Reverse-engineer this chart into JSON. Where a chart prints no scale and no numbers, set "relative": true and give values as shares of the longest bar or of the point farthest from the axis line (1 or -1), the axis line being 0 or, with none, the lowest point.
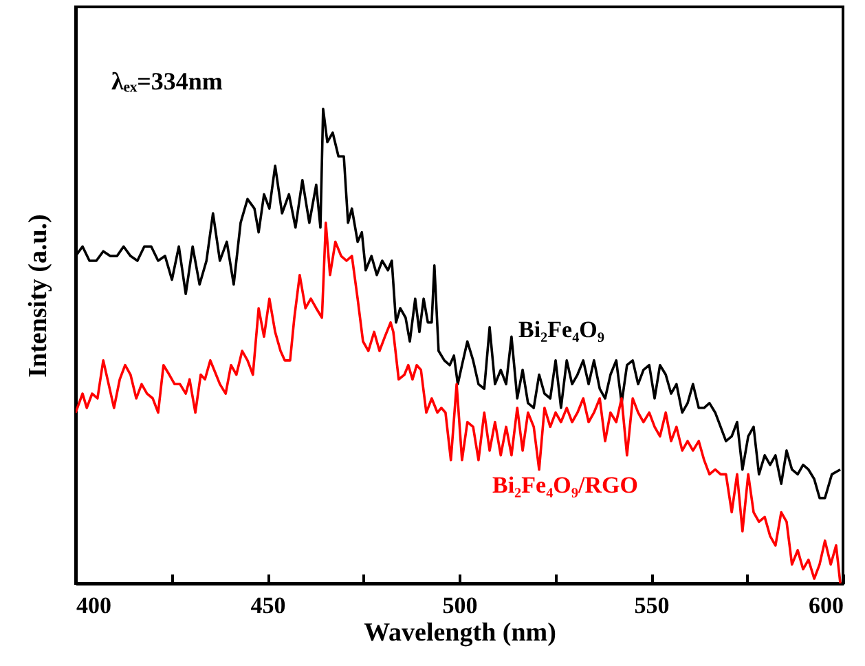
{
  "chart_data": {
    "type": "line",
    "relative": true,
    "xlabel": "Wavelength (nm)",
    "ylabel": "Intensity (a.u.)",
    "annotations": [
      "λₑₓ=334nm"
    ],
    "xlim": [
      400,
      600
    ],
    "xticks": [
      400,
      {
        "value": 425,
        "label": null
      },
      450,
      {
        "value": 475,
        "label": null
      },
      500,
      {
        "value": 525,
        "label": null
      },
      550,
      {
        "value": 575,
        "label": null
      },
      600
    ],
    "grid": false,
    "marker": "none",
    "line_style": "solid",
    "series": [
      {
        "name": "Bi₂Fe₄O₉",
        "color": "#000000",
        "x": [
          400,
          401.8,
          403.6,
          405.4,
          407.2,
          409.0,
          410.8,
          412.5,
          414.3,
          416.1,
          417.9,
          419.7,
          421.5,
          423.3,
          425.1,
          426.9,
          428.7,
          430.5,
          432.3,
          434.1,
          435.8,
          437.6,
          439.4,
          441.2,
          443.0,
          444.8,
          446.6,
          447.7,
          449.1,
          450.5,
          452.0,
          453.8,
          455.6,
          457.3,
          459.1,
          460.9,
          462.7,
          463.8,
          464.5,
          465.6,
          467.0,
          468.5,
          469.9,
          471.0,
          472.0,
          473.5,
          474.6,
          475.6,
          477.1,
          478.5,
          479.9,
          481.4,
          482.4,
          483.5,
          484.6,
          486.0,
          487.1,
          488.5,
          489.6,
          490.7,
          491.8,
          492.8,
          493.5,
          494.6,
          496.1,
          497.5,
          498.6,
          499.6,
          500.7,
          502.1,
          503.6,
          505.0,
          506.5,
          507.9,
          509.3,
          510.8,
          512.2,
          513.6,
          515.1,
          516.5,
          517.9,
          519.4,
          520.8,
          522.2,
          523.7,
          525.1,
          526.5,
          528.0,
          529.4,
          530.8,
          532.3,
          533.7,
          535.1,
          536.6,
          538.0,
          539.4,
          540.9,
          542.3,
          543.7,
          545.2,
          546.6,
          548.0,
          549.5,
          550.9,
          552.3,
          553.8,
          555.2,
          556.6,
          558.1,
          559.5,
          560.9,
          562.4,
          563.8,
          565.2,
          566.7,
          568.1,
          569.5,
          571.0,
          572.4,
          573.8,
          575.3,
          576.7,
          578.1,
          579.6,
          581.0,
          582.4,
          583.9,
          585.3,
          586.7,
          588.2,
          589.6,
          591.0,
          592.5,
          593.9,
          595.3,
          597.1,
          599.3
        ],
        "values": [
          0.69,
          0.71,
          0.68,
          0.68,
          0.7,
          0.69,
          0.69,
          0.71,
          0.69,
          0.68,
          0.71,
          0.71,
          0.68,
          0.69,
          0.64,
          0.71,
          0.61,
          0.71,
          0.63,
          0.68,
          0.78,
          0.68,
          0.72,
          0.63,
          0.76,
          0.81,
          0.79,
          0.74,
          0.82,
          0.79,
          0.88,
          0.78,
          0.82,
          0.75,
          0.85,
          0.76,
          0.84,
          0.75,
          1,
          0.93,
          0.95,
          0.9,
          0.9,
          0.76,
          0.79,
          0.72,
          0.74,
          0.66,
          0.69,
          0.65,
          0.68,
          0.66,
          0.68,
          0.55,
          0.58,
          0.56,
          0.51,
          0.6,
          0.53,
          0.6,
          0.55,
          0.55,
          0.67,
          0.49,
          0.47,
          0.46,
          0.48,
          0.42,
          0.46,
          0.51,
          0.47,
          0.42,
          0.41,
          0.54,
          0.42,
          0.45,
          0.42,
          0.52,
          0.39,
          0.45,
          0.38,
          0.37,
          0.44,
          0.4,
          0.39,
          0.47,
          0.37,
          0.47,
          0.42,
          0.44,
          0.47,
          0.42,
          0.47,
          0.41,
          0.39,
          0.44,
          0.47,
          0.38,
          0.46,
          0.47,
          0.42,
          0.45,
          0.46,
          0.39,
          0.46,
          0.44,
          0.4,
          0.42,
          0.36,
          0.38,
          0.42,
          0.37,
          0.37,
          0.38,
          0.36,
          0.33,
          0.3,
          0.31,
          0.34,
          0.24,
          0.31,
          0.33,
          0.23,
          0.27,
          0.25,
          0.27,
          0.21,
          0.28,
          0.24,
          0.23,
          0.25,
          0.24,
          0.22,
          0.18,
          0.18,
          0.23,
          0.24
        ]
      },
      {
        "name": "Bi₂Fe₄O₉/RGO",
        "color": "#ff0000",
        "x": [
          400,
          401.8,
          402.9,
          404.3,
          405.7,
          407.2,
          408.6,
          410.0,
          411.5,
          412.9,
          414.3,
          415.8,
          417.2,
          418.6,
          420.1,
          421.5,
          422.9,
          424.4,
          425.8,
          427.2,
          428.7,
          429.7,
          431.2,
          432.6,
          433.7,
          435.1,
          436.6,
          437.6,
          439.1,
          440.5,
          441.9,
          443.4,
          444.8,
          446.2,
          447.7,
          449.1,
          450.5,
          452.0,
          453.4,
          454.5,
          455.9,
          457.0,
          458.4,
          459.9,
          461.3,
          462.7,
          464.2,
          465.2,
          466.3,
          467.7,
          469.2,
          470.6,
          472.0,
          473.5,
          474.9,
          476.3,
          477.8,
          479.2,
          480.6,
          482.1,
          482.8,
          484.2,
          485.7,
          486.7,
          487.8,
          488.9,
          490.0,
          491.4,
          492.8,
          494.3,
          495.3,
          496.4,
          497.8,
          499.3,
          500.7,
          502.1,
          503.6,
          505.0,
          506.5,
          507.9,
          509.3,
          510.8,
          512.2,
          513.6,
          515.1,
          516.5,
          517.9,
          519.4,
          520.8,
          522.2,
          523.7,
          525.1,
          526.5,
          528.0,
          529.4,
          530.8,
          532.3,
          533.7,
          535.1,
          536.6,
          538.0,
          539.4,
          540.9,
          542.3,
          543.7,
          545.2,
          546.6,
          548.0,
          549.5,
          550.9,
          552.3,
          553.8,
          555.2,
          556.6,
          558.1,
          559.5,
          560.9,
          562.4,
          563.8,
          565.2,
          566.7,
          568.1,
          569.5,
          571.0,
          572.4,
          573.8,
          575.3,
          576.7,
          578.1,
          579.6,
          581.0,
          582.4,
          583.9,
          585.3,
          586.7,
          588.2,
          589.6,
          591.0,
          592.5,
          593.9,
          595.3,
          596.8,
          598.2,
          599.3
        ],
        "values": [
          0.36,
          0.4,
          0.37,
          0.4,
          0.39,
          0.47,
          0.42,
          0.37,
          0.43,
          0.46,
          0.44,
          0.39,
          0.42,
          0.4,
          0.39,
          0.36,
          0.46,
          0.44,
          0.42,
          0.42,
          0.4,
          0.43,
          0.36,
          0.44,
          0.43,
          0.47,
          0.44,
          0.42,
          0.4,
          0.46,
          0.44,
          0.49,
          0.47,
          0.44,
          0.58,
          0.52,
          0.6,
          0.53,
          0.49,
          0.47,
          0.47,
          0.56,
          0.65,
          0.58,
          0.6,
          0.58,
          0.56,
          0.76,
          0.65,
          0.72,
          0.69,
          0.68,
          0.69,
          0.6,
          0.51,
          0.49,
          0.53,
          0.49,
          0.52,
          0.55,
          0.53,
          0.43,
          0.44,
          0.46,
          0.43,
          0.46,
          0.45,
          0.36,
          0.39,
          0.36,
          0.37,
          0.36,
          0.26,
          0.42,
          0.26,
          0.34,
          0.33,
          0.26,
          0.36,
          0.28,
          0.34,
          0.27,
          0.33,
          0.27,
          0.37,
          0.28,
          0.36,
          0.33,
          0.24,
          0.37,
          0.33,
          0.36,
          0.34,
          0.37,
          0.34,
          0.36,
          0.39,
          0.34,
          0.36,
          0.39,
          0.3,
          0.36,
          0.34,
          0.39,
          0.27,
          0.39,
          0.36,
          0.34,
          0.36,
          0.33,
          0.31,
          0.36,
          0.3,
          0.33,
          0.28,
          0.3,
          0.28,
          0.3,
          0.26,
          0.23,
          0.24,
          0.23,
          0.23,
          0.15,
          0.23,
          0.11,
          0.23,
          0.15,
          0.13,
          0.14,
          0.1,
          0.08,
          0.15,
          0.13,
          0.04,
          0.07,
          0.03,
          0.05,
          0.01,
          0.04,
          0.09,
          0.04,
          0.08,
          0
        ]
      }
    ]
  }
}
